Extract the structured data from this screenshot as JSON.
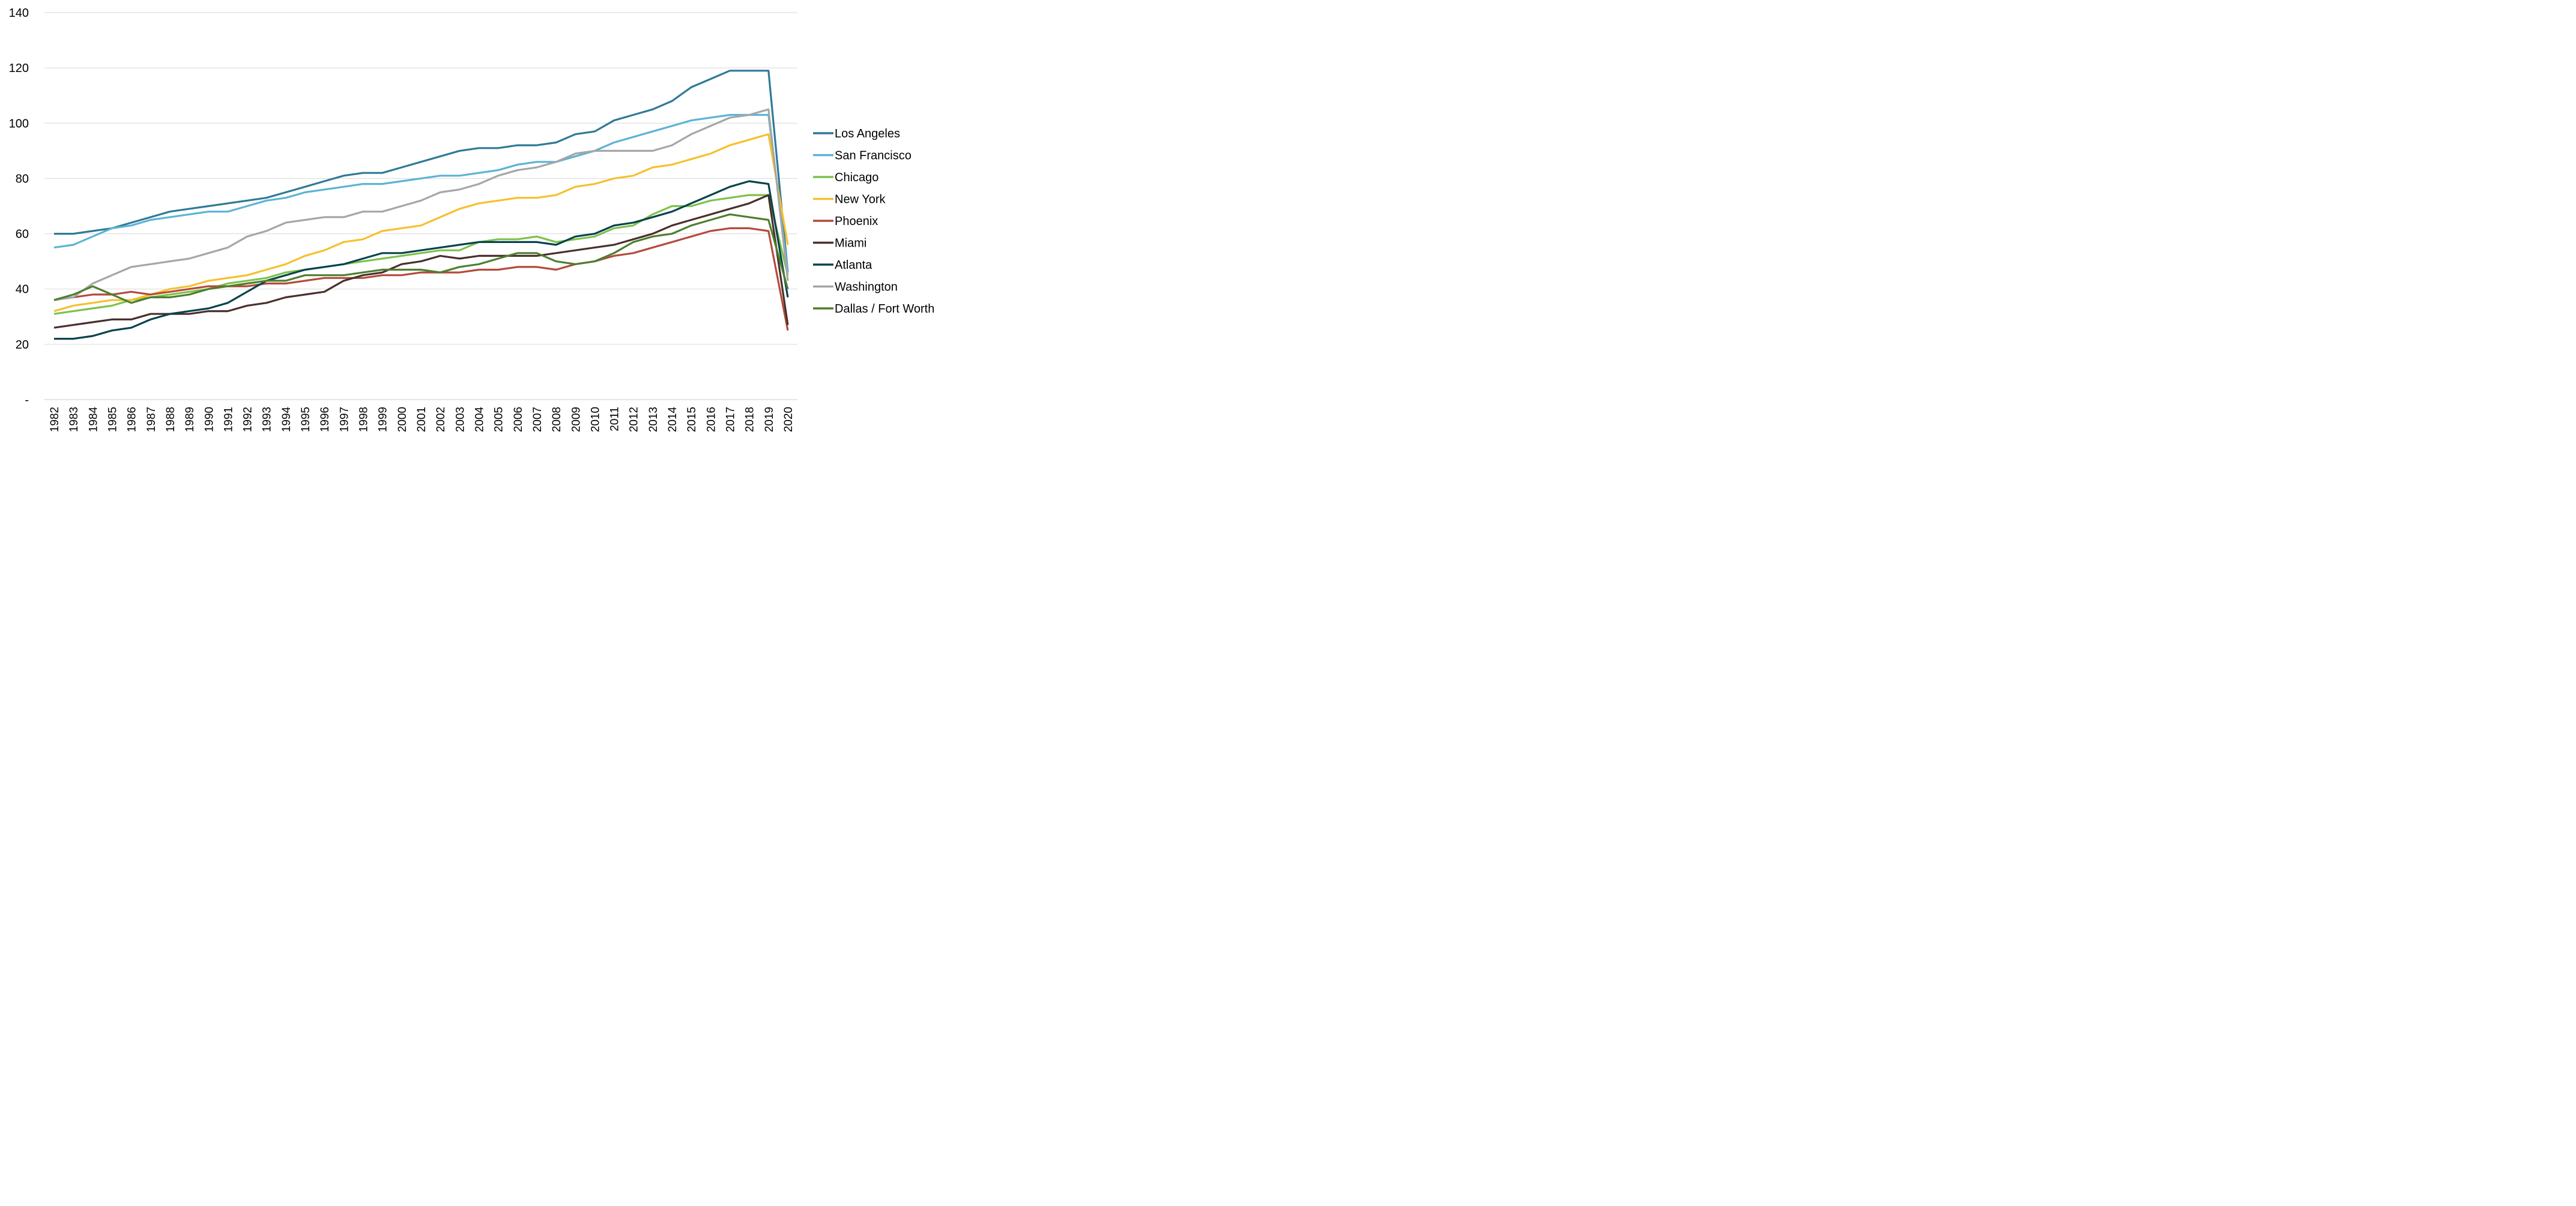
{
  "chart_data": {
    "type": "line",
    "title": "",
    "xlabel": "",
    "ylabel": "",
    "ylim": [
      0,
      140
    ],
    "y_ticks": [
      {
        "value": 0,
        "label": "-"
      },
      {
        "value": 20,
        "label": "20"
      },
      {
        "value": 40,
        "label": "40"
      },
      {
        "value": 60,
        "label": "60"
      },
      {
        "value": 80,
        "label": "80"
      },
      {
        "value": 100,
        "label": "100"
      },
      {
        "value": 120,
        "label": "120"
      },
      {
        "value": 140,
        "label": "140"
      }
    ],
    "grid": "horizontal",
    "legend_position": "right",
    "x": [
      "1982",
      "1983",
      "1984",
      "1985",
      "1986",
      "1987",
      "1988",
      "1989",
      "1990",
      "1991",
      "1992",
      "1993",
      "1994",
      "1995",
      "1996",
      "1997",
      "1998",
      "1999",
      "2000",
      "2001",
      "2002",
      "2003",
      "2004",
      "2005",
      "2006",
      "2007",
      "2008",
      "2009",
      "2010",
      "2011",
      "2012",
      "2013",
      "2014",
      "2015",
      "2016",
      "2017",
      "2018",
      "2019",
      "2020"
    ],
    "series": [
      {
        "name": "Los Angeles",
        "color": "#2e7a96",
        "values": [
          60,
          60,
          61,
          62,
          64,
          66,
          68,
          69,
          70,
          71,
          72,
          73,
          75,
          77,
          79,
          81,
          82,
          82,
          84,
          86,
          88,
          90,
          91,
          91,
          92,
          92,
          93,
          96,
          97,
          101,
          103,
          105,
          108,
          113,
          116,
          119,
          119,
          119,
          46
        ]
      },
      {
        "name": "San Francisco",
        "color": "#5cb3d4",
        "values": [
          55,
          56,
          59,
          62,
          63,
          65,
          66,
          67,
          68,
          68,
          70,
          72,
          73,
          75,
          76,
          77,
          78,
          78,
          79,
          80,
          81,
          81,
          82,
          83,
          85,
          86,
          86,
          88,
          90,
          93,
          95,
          97,
          99,
          101,
          102,
          103,
          103,
          103,
          46
        ]
      },
      {
        "name": "Chicago",
        "color": "#7dc14a",
        "values": [
          31,
          32,
          33,
          34,
          36,
          37,
          38,
          39,
          40,
          42,
          43,
          44,
          46,
          47,
          48,
          49,
          50,
          51,
          52,
          53,
          54,
          54,
          57,
          58,
          58,
          59,
          57,
          58,
          59,
          62,
          63,
          67,
          70,
          70,
          72,
          73,
          74,
          74,
          45
        ]
      },
      {
        "name": "New York",
        "color": "#f6c02d",
        "values": [
          32,
          34,
          35,
          36,
          36,
          38,
          40,
          41,
          43,
          44,
          45,
          47,
          49,
          52,
          54,
          57,
          58,
          61,
          62,
          63,
          66,
          69,
          71,
          72,
          73,
          73,
          74,
          77,
          78,
          80,
          81,
          84,
          85,
          87,
          89,
          92,
          94,
          96,
          56
        ]
      },
      {
        "name": "Phoenix",
        "color": "#b44a3c",
        "values": [
          36,
          37,
          38,
          38,
          39,
          38,
          39,
          40,
          41,
          41,
          41,
          42,
          42,
          43,
          44,
          44,
          44,
          45,
          45,
          46,
          46,
          46,
          47,
          47,
          48,
          48,
          47,
          49,
          50,
          52,
          53,
          55,
          57,
          59,
          61,
          62,
          62,
          61,
          25
        ]
      },
      {
        "name": "Miami",
        "color": "#4a2f2c",
        "values": [
          26,
          27,
          28,
          29,
          29,
          31,
          31,
          31,
          32,
          32,
          34,
          35,
          37,
          38,
          39,
          43,
          45,
          46,
          49,
          50,
          52,
          51,
          52,
          52,
          52,
          52,
          53,
          54,
          55,
          56,
          58,
          60,
          63,
          65,
          67,
          69,
          71,
          74,
          27
        ]
      },
      {
        "name": "Atlanta",
        "color": "#06434c",
        "values": [
          22,
          22,
          23,
          25,
          26,
          29,
          31,
          32,
          33,
          35,
          39,
          43,
          45,
          47,
          48,
          49,
          51,
          53,
          53,
          54,
          55,
          56,
          57,
          57,
          57,
          57,
          56,
          59,
          60,
          63,
          64,
          66,
          68,
          71,
          74,
          77,
          79,
          78,
          37
        ]
      },
      {
        "name": "Washington",
        "color": "#a6a6a6",
        "values": [
          36,
          37,
          42,
          45,
          48,
          49,
          50,
          51,
          53,
          55,
          59,
          61,
          64,
          65,
          66,
          66,
          68,
          68,
          70,
          72,
          75,
          76,
          78,
          81,
          83,
          84,
          86,
          89,
          90,
          90,
          90,
          90,
          92,
          96,
          99,
          102,
          103,
          105,
          43
        ]
      },
      {
        "name": "Dallas / Fort Worth",
        "color": "#4d7f2e",
        "values": [
          36,
          38,
          41,
          38,
          35,
          37,
          37,
          38,
          40,
          41,
          42,
          43,
          43,
          45,
          45,
          45,
          46,
          47,
          47,
          47,
          46,
          48,
          49,
          51,
          53,
          53,
          50,
          49,
          50,
          53,
          57,
          59,
          60,
          63,
          65,
          67,
          66,
          65,
          40
        ]
      }
    ]
  }
}
